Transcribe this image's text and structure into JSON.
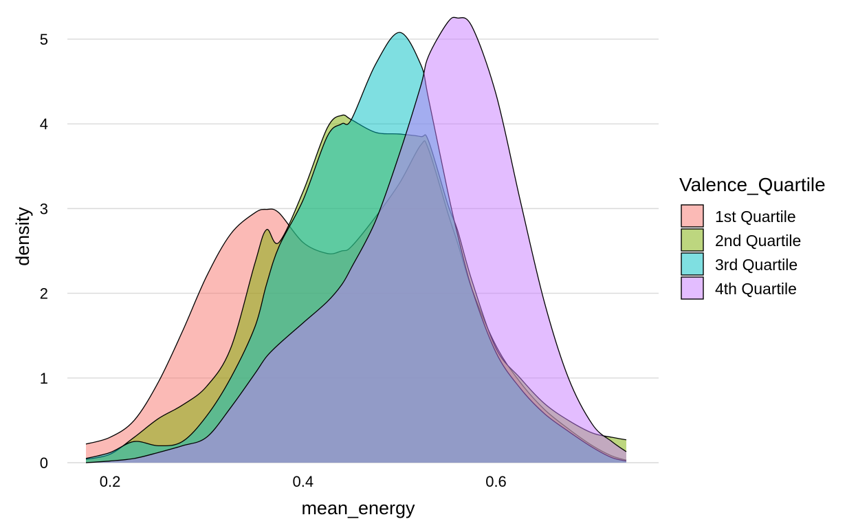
{
  "chart_data": {
    "type": "area",
    "subtype": "density",
    "title": "",
    "xlabel": "mean_energy",
    "ylabel": "density",
    "xlim": [
      0.175,
      0.74
    ],
    "ylim": [
      0,
      5.3
    ],
    "x_ticks": [
      0.2,
      0.4,
      0.6
    ],
    "x_tick_labels": [
      "0.2",
      "0.4",
      "0.6"
    ],
    "y_ticks": [
      0,
      1,
      2,
      3,
      4,
      5
    ],
    "y_tick_labels": [
      "0",
      "1",
      "2",
      "3",
      "4",
      "5"
    ],
    "grid": true,
    "legend": {
      "title": "Valence_Quartile",
      "position": "right"
    },
    "x": [
      0.175,
      0.2,
      0.225,
      0.25,
      0.275,
      0.3,
      0.325,
      0.35,
      0.362,
      0.375,
      0.4,
      0.425,
      0.44,
      0.45,
      0.475,
      0.5,
      0.522,
      0.53,
      0.55,
      0.56,
      0.575,
      0.6,
      0.625,
      0.65,
      0.675,
      0.7,
      0.72,
      0.735
    ],
    "series": [
      {
        "name": "1st Quartile",
        "color": "#F8766D",
        "values": [
          0.22,
          0.3,
          0.5,
          0.95,
          1.55,
          2.2,
          2.7,
          2.95,
          2.99,
          2.95,
          2.6,
          2.47,
          2.5,
          2.55,
          2.9,
          3.3,
          3.75,
          3.7,
          2.95,
          2.6,
          2.05,
          1.38,
          0.95,
          0.63,
          0.4,
          0.2,
          0.08,
          0.03
        ]
      },
      {
        "name": "2nd Quartile",
        "color": "#7CAE00",
        "values": [
          0.04,
          0.1,
          0.3,
          0.52,
          0.68,
          0.9,
          1.35,
          2.35,
          2.75,
          2.6,
          3.2,
          3.95,
          4.1,
          4.05,
          3.9,
          3.88,
          3.85,
          3.8,
          3.05,
          2.75,
          2.15,
          1.35,
          1.0,
          0.7,
          0.5,
          0.35,
          0.3,
          0.27
        ]
      },
      {
        "name": "3rd Quartile",
        "color": "#00BFC4",
        "values": [
          0.05,
          0.12,
          0.25,
          0.2,
          0.25,
          0.55,
          1.0,
          1.6,
          2.1,
          2.55,
          3.1,
          3.85,
          4.0,
          4.05,
          4.7,
          5.08,
          4.7,
          4.3,
          3.2,
          2.7,
          2.05,
          1.3,
          0.88,
          0.58,
          0.37,
          0.18,
          0.06,
          0.02
        ]
      },
      {
        "name": "4th Quartile",
        "color": "#C77CFF",
        "values": [
          0.0,
          0.02,
          0.05,
          0.12,
          0.2,
          0.3,
          0.65,
          1.05,
          1.25,
          1.4,
          1.65,
          1.9,
          2.1,
          2.3,
          2.85,
          3.65,
          4.45,
          4.8,
          5.2,
          5.25,
          5.15,
          4.35,
          3.1,
          1.9,
          1.0,
          0.45,
          0.25,
          0.13
        ]
      }
    ]
  }
}
